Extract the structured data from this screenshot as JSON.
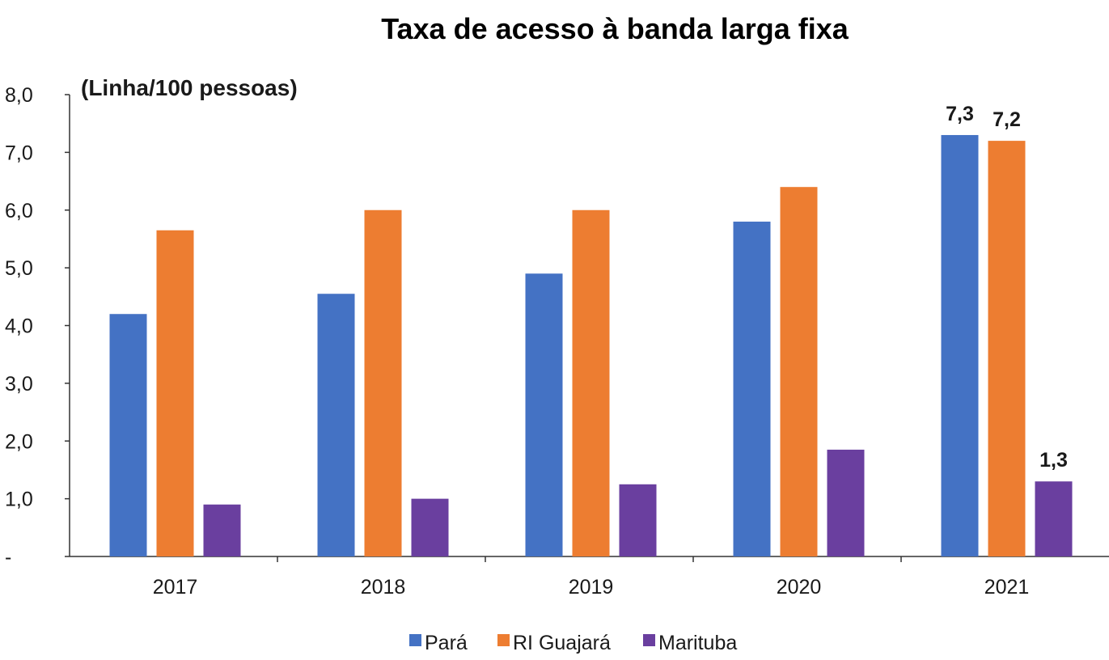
{
  "chart_data": {
    "type": "bar",
    "title": "Taxa de acesso à banda larga fixa",
    "unit_label": "(Linha/100 pessoas)",
    "xlabel": "",
    "ylabel": "",
    "categories": [
      "2017",
      "2018",
      "2019",
      "2020",
      "2021"
    ],
    "series": [
      {
        "name": "Pará",
        "color": "#4472C4",
        "values": [
          4.2,
          4.55,
          4.9,
          5.8,
          7.3
        ]
      },
      {
        "name": "RI Guajará",
        "color": "#ED7D31",
        "values": [
          5.65,
          6.0,
          6.0,
          6.4,
          7.2
        ]
      },
      {
        "name": "Marituba",
        "color": "#6A3F9F",
        "values": [
          0.9,
          1.0,
          1.25,
          1.85,
          1.3
        ]
      }
    ],
    "ylim": [
      0,
      8
    ],
    "y_ticks": [
      {
        "value": 0,
        "label": "-"
      },
      {
        "value": 1,
        "label": "1,0"
      },
      {
        "value": 2,
        "label": "2,0"
      },
      {
        "value": 3,
        "label": "3,0"
      },
      {
        "value": 4,
        "label": "4,0"
      },
      {
        "value": 5,
        "label": "5,0"
      },
      {
        "value": 6,
        "label": "6,0"
      },
      {
        "value": 7,
        "label": "7,0"
      },
      {
        "value": 8,
        "label": "8,0"
      }
    ],
    "data_labels": [
      {
        "category": "2021",
        "series": "Pará",
        "text": "7,3"
      },
      {
        "category": "2021",
        "series": "RI Guajará",
        "text": "7,2"
      },
      {
        "category": "2021",
        "series": "Marituba",
        "text": "1,3"
      }
    ],
    "grid": false,
    "legend_position": "bottom"
  }
}
